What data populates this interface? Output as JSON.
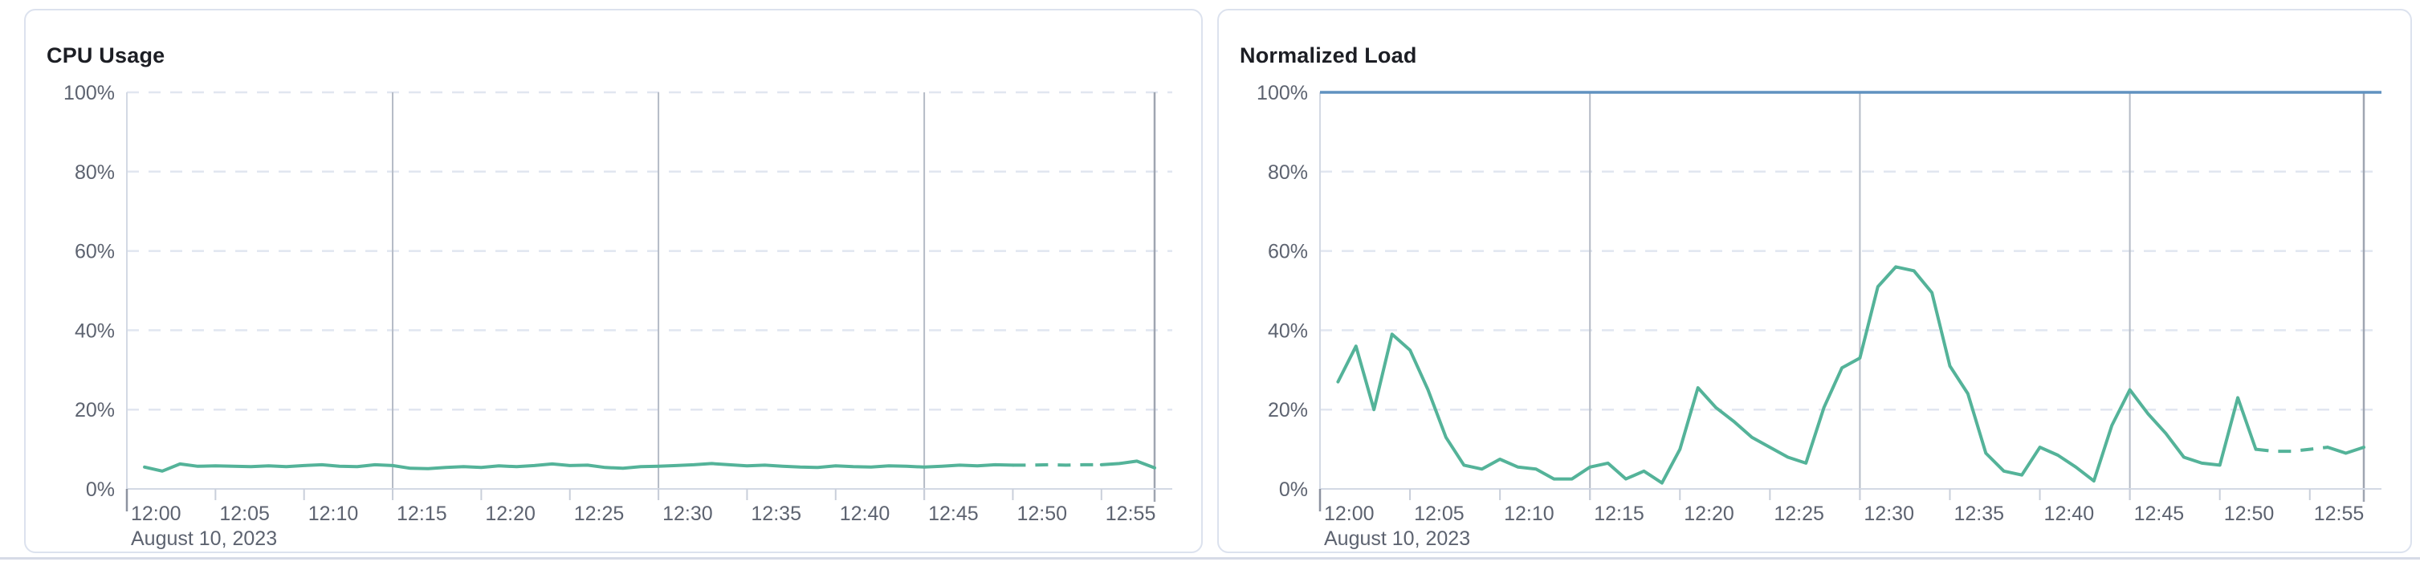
{
  "page": {
    "date_label": "August 10, 2023"
  },
  "chart_data": [
    {
      "type": "line",
      "title": "CPU Usage",
      "x_axis": {
        "date_label": "August 10, 2023",
        "tick_labels": [
          "12:00",
          "12:05",
          "12:10",
          "12:15",
          "12:20",
          "12:25",
          "12:30",
          "12:35",
          "12:40",
          "12:45",
          "12:50",
          "12:55"
        ],
        "tick_minutes": [
          0,
          5,
          10,
          15,
          20,
          25,
          30,
          35,
          40,
          45,
          50,
          55
        ],
        "major_gridline_minutes": [
          15,
          30,
          45
        ],
        "end_minute": 58
      },
      "y_axis": {
        "min": 0,
        "max": 100,
        "tick_values": [
          0,
          20,
          40,
          60,
          80,
          100
        ],
        "tick_labels": [
          "0%",
          "20%",
          "40%",
          "60%",
          "80%",
          "100%"
        ],
        "grid": "dashed"
      },
      "series": [
        {
          "name": "CPU Usage",
          "color": "#54B399",
          "first_minute": 1,
          "values": [
            5.5,
            4.5,
            6.3,
            5.7,
            5.8,
            5.7,
            5.6,
            5.8,
            5.6,
            5.9,
            6.1,
            5.7,
            5.6,
            6.1,
            5.9,
            5.2,
            5.1,
            5.4,
            5.6,
            5.4,
            5.8,
            5.6,
            5.9,
            6.3,
            5.9,
            6.0,
            5.4,
            5.2,
            5.6,
            5.7,
            5.9,
            6.1,
            6.4,
            6.1,
            5.8,
            6.0,
            5.7,
            5.5,
            5.4,
            5.8,
            5.6,
            5.5,
            5.8,
            5.7,
            5.5,
            5.7,
            6.0,
            5.8,
            6.1,
            6.0,
            6.0,
            6.1,
            6.0,
            6.1,
            6.1,
            6.4,
            7.0,
            5.3
          ],
          "dashed_from_minute": 50,
          "dashed_to_minute": 55
        }
      ]
    },
    {
      "type": "line",
      "title": "Normalized Load",
      "x_axis": {
        "date_label": "August 10, 2023",
        "tick_labels": [
          "12:00",
          "12:05",
          "12:10",
          "12:15",
          "12:20",
          "12:25",
          "12:30",
          "12:35",
          "12:40",
          "12:45",
          "12:50",
          "12:55"
        ],
        "tick_minutes": [
          0,
          5,
          10,
          15,
          20,
          25,
          30,
          35,
          40,
          45,
          50,
          55
        ],
        "major_gridline_minutes": [
          15,
          30,
          45
        ],
        "end_minute": 58
      },
      "y_axis": {
        "min": 0,
        "max": 100,
        "tick_values": [
          0,
          20,
          40,
          60,
          80,
          100
        ],
        "tick_labels": [
          "0%",
          "20%",
          "40%",
          "60%",
          "80%",
          "100%"
        ],
        "grid": "dashed"
      },
      "limit_line": {
        "value": 100,
        "color": "#6092C0"
      },
      "series": [
        {
          "name": "Normalized Load",
          "color": "#54B399",
          "first_minute": 1,
          "values": [
            27,
            36,
            20,
            39,
            35,
            25,
            13,
            6,
            5,
            7.5,
            5.5,
            5,
            2.5,
            2.5,
            5.5,
            6.5,
            2.5,
            4.5,
            1.5,
            10,
            25.5,
            20.5,
            17,
            13,
            10.5,
            8,
            6.5,
            20.5,
            30.5,
            33,
            51,
            56,
            55,
            49.5,
            31,
            24,
            9,
            4.5,
            3.5,
            10.5,
            8.5,
            5.5,
            2,
            16,
            25,
            19,
            14,
            8,
            6.5,
            6,
            23,
            10,
            9.5,
            9.5,
            10,
            10.5,
            9,
            10.5
          ],
          "dashed_from_minute": 52,
          "dashed_to_minute": 56
        }
      ]
    }
  ],
  "colors": {
    "series_green": "#54B399",
    "limit_blue": "#6092C0",
    "axis_text": "#5d6370",
    "grid_dashed": "#e1e6f0",
    "grid_major": "#b5bbc6",
    "now_line": "#9fa5b1",
    "axis_line": "#d3d9e4",
    "tick": "#c9cfda",
    "tick_origin": "#8d93a0"
  }
}
